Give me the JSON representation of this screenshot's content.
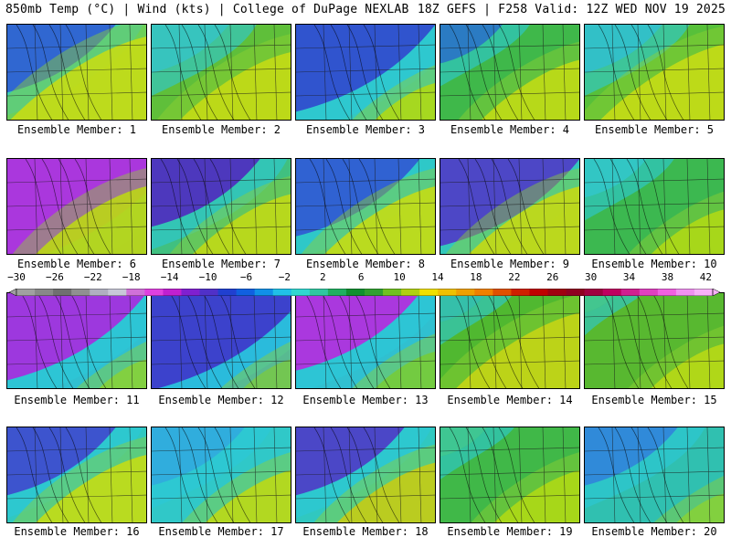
{
  "header": {
    "left": "850mb Temp (°C) | Wind (kts) | College of DuPage NEXLAB",
    "right": "18Z GEFS | F258 Valid: 12Z WED NOV 19 2025"
  },
  "members": [
    {
      "label": "Ensemble Member: 1",
      "cold": 0.35,
      "warm": 0.55,
      "cold_color": "#2a55e0",
      "warm_color": "#f2e600",
      "base": "#4fcf7a"
    },
    {
      "label": "Ensemble Member: 2",
      "cold": 0.25,
      "warm": 0.45,
      "cold_color": "#30c4d6",
      "warm_color": "#f0e400",
      "base": "#5fbf3a"
    },
    {
      "label": "Ensemble Member: 3",
      "cold": 0.45,
      "warm": 0.25,
      "cold_color": "#3040d0",
      "warm_color": "#c8e000",
      "base": "#33c9c0"
    },
    {
      "label": "Ensemble Member: 4",
      "cold": 0.2,
      "warm": 0.4,
      "cold_color": "#2870d8",
      "warm_color": "#e8e400",
      "base": "#3fb84a"
    },
    {
      "label": "Ensemble Member: 5",
      "cold": 0.25,
      "warm": 0.5,
      "cold_color": "#2bbfe0",
      "warm_color": "#f2e600",
      "base": "#57c03a"
    },
    {
      "label": "Ensemble Member: 6",
      "cold": 0.55,
      "warm": 0.45,
      "cold_color": "#c020e0",
      "warm_color": "#e0dc00",
      "base": "#30b8c8"
    },
    {
      "label": "Ensemble Member: 7",
      "cold": 0.35,
      "warm": 0.4,
      "cold_color": "#5020c8",
      "warm_color": "#e8e200",
      "base": "#40c080"
    },
    {
      "label": "Ensemble Member: 8",
      "cold": 0.4,
      "warm": 0.45,
      "cold_color": "#3050d8",
      "warm_color": "#eee600",
      "base": "#33c8b0"
    },
    {
      "label": "Ensemble Member: 9",
      "cold": 0.45,
      "warm": 0.45,
      "cold_color": "#5030d0",
      "warm_color": "#f0e000",
      "base": "#40c890"
    },
    {
      "label": "Ensemble Member: 10",
      "cold": 0.2,
      "warm": 0.3,
      "cold_color": "#30c8d8",
      "warm_color": "#c8e000",
      "base": "#3cb850"
    },
    {
      "label": "Ensemble Member: 11",
      "cold": 0.45,
      "warm": 0.2,
      "cold_color": "#b020e0",
      "warm_color": "#80d040",
      "base": "#30c0d0"
    },
    {
      "label": "Ensemble Member: 12",
      "cold": 0.5,
      "warm": 0.2,
      "cold_color": "#4030c8",
      "warm_color": "#60c060",
      "base": "#2aa8e0"
    },
    {
      "label": "Ensemble Member: 13",
      "cold": 0.4,
      "warm": 0.25,
      "cold_color": "#c020e0",
      "warm_color": "#60c840",
      "base": "#30c0d0"
    },
    {
      "label": "Ensemble Member: 14",
      "cold": 0.15,
      "warm": 0.5,
      "cold_color": "#30c0c0",
      "warm_color": "#f0d800",
      "base": "#50b830"
    },
    {
      "label": "Ensemble Member: 15",
      "cold": 0.1,
      "warm": 0.3,
      "cold_color": "#40c8a0",
      "warm_color": "#d8e000",
      "base": "#58b830"
    },
    {
      "label": "Ensemble Member: 16",
      "cold": 0.35,
      "warm": 0.45,
      "cold_color": "#4040d0",
      "warm_color": "#eee600",
      "base": "#30c8c0"
    },
    {
      "label": "Ensemble Member: 17",
      "cold": 0.3,
      "warm": 0.35,
      "cold_color": "#30a8e0",
      "warm_color": "#e0e000",
      "base": "#30c8c8"
    },
    {
      "label": "Ensemble Member: 18",
      "cold": 0.35,
      "warm": 0.4,
      "cold_color": "#5030c8",
      "warm_color": "#f0c800",
      "base": "#30c8c0"
    },
    {
      "label": "Ensemble Member: 19",
      "cold": 0.15,
      "warm": 0.35,
      "cold_color": "#40c8a0",
      "warm_color": "#c8e000",
      "base": "#40b848"
    },
    {
      "label": "Ensemble Member: 20",
      "cold": 0.3,
      "warm": 0.2,
      "cold_color": "#3080e0",
      "warm_color": "#80d040",
      "base": "#30c0b0"
    }
  ],
  "colorbar": {
    "ticks": [
      "−30",
      "−26",
      "−22",
      "−18",
      "−14",
      "−10",
      "−6",
      "−2",
      "2",
      "6",
      "10",
      "14",
      "18",
      "22",
      "26",
      "30",
      "34",
      "38",
      "42"
    ],
    "colors": [
      "#a0a0a0",
      "#888888",
      "#707070",
      "#909090",
      "#b0b0c0",
      "#c8c8d8",
      "#d070d8",
      "#e040e0",
      "#c020d0",
      "#8020d0",
      "#5030c8",
      "#2040d0",
      "#1060e0",
      "#1090e8",
      "#20c0e8",
      "#30d8d0",
      "#30c8a0",
      "#20b060",
      "#109030",
      "#30a030",
      "#70c020",
      "#b0d010",
      "#f0e000",
      "#f0c000",
      "#f0a000",
      "#f08000",
      "#e05000",
      "#d02000",
      "#c00000",
      "#a00010",
      "#900020",
      "#a00040",
      "#c00060",
      "#d02090",
      "#e040c0",
      "#f060e0",
      "#f090f0",
      "#f8b0f8"
    ]
  }
}
